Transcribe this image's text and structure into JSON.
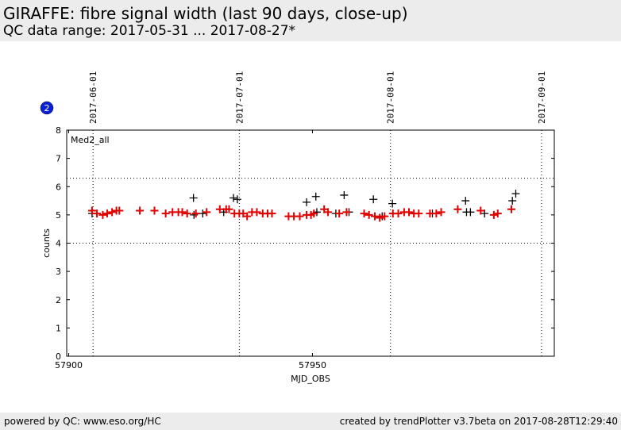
{
  "header": {
    "title": "GIRAFFE: fibre signal width (last 90 days, close-up)",
    "subtitle": "QC data range: 2017-05-31 ... 2017-08-27*"
  },
  "badge": {
    "number": "2",
    "color": "#0a1fd6"
  },
  "footer": {
    "left": "powered by QC: www.eso.org/HC",
    "right": "created by trendPlotter v3.7beta on 2017-08-28T12:29:40"
  },
  "chart_data": {
    "type": "scatter",
    "panel_label": "Med2_all",
    "xlabel": "MJD_OBS",
    "ylabel": "counts",
    "xlim": [
      57899.6,
      57999.6
    ],
    "ylim": [
      0,
      8
    ],
    "x_ticks": [
      57900,
      57950
    ],
    "y_ticks": [
      0,
      1,
      2,
      3,
      4,
      5,
      6,
      7,
      8
    ],
    "date_markers": [
      {
        "label": "2017-06-01",
        "mjd": 57905.0
      },
      {
        "label": "2017-07-01",
        "mjd": 57935.0
      },
      {
        "label": "2017-08-01",
        "mjd": 57966.0
      },
      {
        "label": "2017-09-01",
        "mjd": 57997.0
      }
    ],
    "threshold_lines": [
      4.0,
      6.3
    ],
    "series": [
      {
        "color": "#000000",
        "values": [
          [
            57904.8,
            5.05
          ],
          [
            57925.6,
            5.6
          ],
          [
            57925.7,
            5.0
          ],
          [
            57927.5,
            5.05
          ],
          [
            57931.8,
            5.1
          ],
          [
            57933.8,
            5.6
          ],
          [
            57934.6,
            5.55
          ],
          [
            57948.8,
            5.45
          ],
          [
            57950.7,
            5.65
          ],
          [
            57950.9,
            5.1
          ],
          [
            57954.8,
            5.05
          ],
          [
            57956.5,
            5.7
          ],
          [
            57957.5,
            5.1
          ],
          [
            57962.5,
            5.55
          ],
          [
            57964.3,
            4.95
          ],
          [
            57966.4,
            5.4
          ],
          [
            57974.6,
            5.05
          ],
          [
            57981.4,
            5.5
          ],
          [
            57981.6,
            5.1
          ],
          [
            57982.4,
            5.1
          ],
          [
            57985.3,
            5.05
          ],
          [
            57991.0,
            5.5
          ],
          [
            57991.7,
            5.75
          ]
        ]
      },
      {
        "color": "#e00000",
        "values": [
          [
            57904.8,
            5.15
          ],
          [
            57905.8,
            5.05
          ],
          [
            57907.0,
            5.0
          ],
          [
            57907.9,
            5.05
          ],
          [
            57908.9,
            5.1
          ],
          [
            57909.8,
            5.15
          ],
          [
            57910.4,
            5.15
          ],
          [
            57914.6,
            5.15
          ],
          [
            57917.6,
            5.15
          ],
          [
            57919.9,
            5.05
          ],
          [
            57921.3,
            5.1
          ],
          [
            57922.5,
            5.1
          ],
          [
            57923.3,
            5.1
          ],
          [
            57924.3,
            5.05
          ],
          [
            57926.1,
            5.05
          ],
          [
            57928.3,
            5.1
          ],
          [
            57931.0,
            5.2
          ],
          [
            57932.3,
            5.2
          ],
          [
            57932.9,
            5.2
          ],
          [
            57934.0,
            5.05
          ],
          [
            57935.0,
            5.05
          ],
          [
            57935.8,
            5.05
          ],
          [
            57936.6,
            4.95
          ],
          [
            57937.6,
            5.1
          ],
          [
            57938.6,
            5.1
          ],
          [
            57939.8,
            5.05
          ],
          [
            57940.8,
            5.05
          ],
          [
            57941.7,
            5.05
          ],
          [
            57945.1,
            4.95
          ],
          [
            57946.2,
            4.95
          ],
          [
            57947.4,
            4.95
          ],
          [
            57948.8,
            5.0
          ],
          [
            57949.7,
            5.0
          ],
          [
            57950.3,
            5.05
          ],
          [
            57952.4,
            5.2
          ],
          [
            57953.2,
            5.1
          ],
          [
            57955.5,
            5.05
          ],
          [
            57957.0,
            5.1
          ],
          [
            57960.6,
            5.05
          ],
          [
            57961.6,
            5.0
          ],
          [
            57962.8,
            4.95
          ],
          [
            57963.8,
            4.9
          ],
          [
            57964.8,
            4.95
          ],
          [
            57966.5,
            5.05
          ],
          [
            57967.6,
            5.05
          ],
          [
            57968.8,
            5.1
          ],
          [
            57969.8,
            5.1
          ],
          [
            57970.8,
            5.05
          ],
          [
            57971.8,
            5.05
          ],
          [
            57974.1,
            5.05
          ],
          [
            57975.4,
            5.05
          ],
          [
            57976.4,
            5.1
          ],
          [
            57979.8,
            5.2
          ],
          [
            57984.5,
            5.15
          ],
          [
            57987.2,
            5.0
          ],
          [
            57988.0,
            5.05
          ],
          [
            57990.8,
            5.2
          ]
        ]
      }
    ]
  }
}
